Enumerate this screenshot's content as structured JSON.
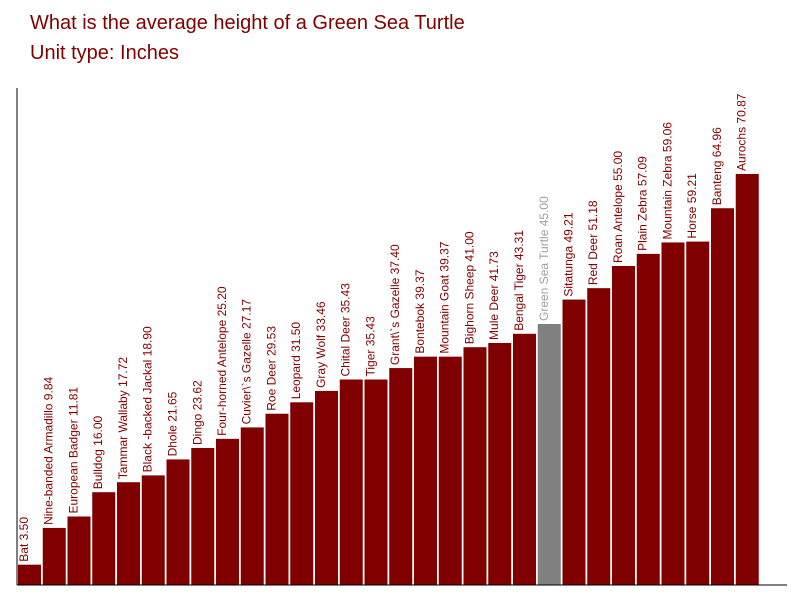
{
  "header": {
    "title": "What is the average height of a Green Sea Turtle",
    "subtitle": "Unit type: Inches"
  },
  "colors": {
    "bar": "#800000",
    "highlight": "#808080",
    "label": "#800000",
    "highlight_label": "#a0a0a0",
    "axis": "#000000"
  },
  "chart_data": {
    "type": "bar",
    "title": "What is the average height of a Green Sea Turtle",
    "subtitle": "Unit type: Inches",
    "xlabel": "",
    "ylabel": "",
    "ylim": [
      0,
      80
    ],
    "highlight": "Green Sea Turtle",
    "categories": [
      "Bat",
      "Nine-banded Armadillo",
      "European Badger",
      "Bulldog",
      "Tammar Wallaby",
      "Black -backed Jackal",
      "Dhole",
      "Dingo",
      "Four-horned Antelope",
      "Cuvier\\`s Gazelle",
      "Roe Deer",
      "Leopard",
      "Gray Wolf",
      "Chital Deer",
      "Tiger",
      "Grant\\`s Gazelle",
      "Bontebok",
      "Mountain Goat",
      "Bighorn Sheep",
      "Mule Deer",
      "Bengal Tiger",
      "Green Sea Turtle",
      "Sitatunga",
      "Red Deer",
      "Roan Antelope",
      "Plain Zebra",
      "Mountain Zebra",
      "Horse",
      "Banteng",
      "Aurochs"
    ],
    "values": [
      3.5,
      9.84,
      11.81,
      16.0,
      17.72,
      18.9,
      21.65,
      23.62,
      25.2,
      27.17,
      29.53,
      31.5,
      33.46,
      35.43,
      35.43,
      37.4,
      39.37,
      39.37,
      41.0,
      41.73,
      43.31,
      45.0,
      49.21,
      51.18,
      55.0,
      57.09,
      59.06,
      59.21,
      64.96,
      70.87
    ],
    "labels": [
      "Bat 3.50",
      "Nine-banded Armadillo 9.84",
      "European Badger 11.81",
      "Bulldog 16.00",
      "Tammar Wallaby 17.72",
      "Black -backed Jackal 18.90",
      "Dhole 21.65",
      "Dingo  23.62",
      "Four-horned Antelope 25.20",
      "Cuvier\\`s Gazelle 27.17",
      "Roe Deer 29.53",
      "Leopard  31.50",
      "Gray Wolf 33.46",
      "Chital Deer 35.43",
      "Tiger 35.43",
      "Grant\\`s Gazelle 37.40",
      "Bontebok 39.37",
      "Mountain Goat 39.37",
      "Bighorn Sheep 41.00",
      "Mule Deer 41.73",
      "Bengal Tiger 43.31",
      "Green Sea Turtle 45.00",
      "Sitatunga 49.21",
      "Red Deer 51.18",
      "Roan Antelope 55.00",
      "Plain Zebra 57.09",
      "Mountain Zebra 59.06",
      "Horse 59.21",
      "Banteng 64.96",
      "Aurochs 70.87"
    ]
  }
}
